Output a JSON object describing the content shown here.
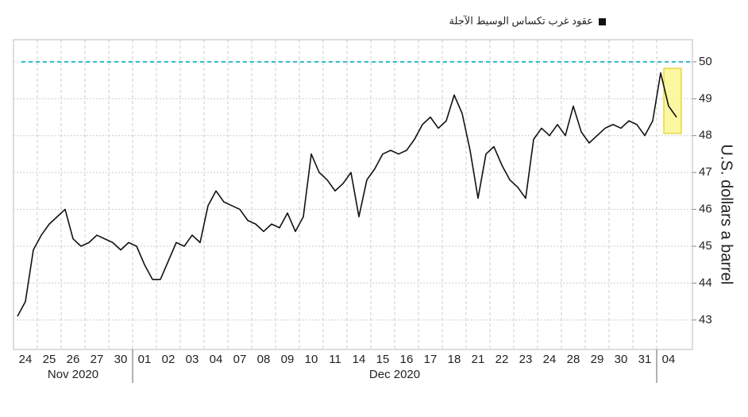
{
  "chart_data": {
    "type": "line",
    "legend": "عقود غرب تكساس الوسيط الآجلة",
    "y_axis_label": "U.S. dollars a barrel",
    "categories": [
      null,
      "24",
      null,
      null,
      "25",
      null,
      null,
      "26",
      null,
      null,
      "27",
      null,
      null,
      "30",
      null,
      null,
      "01",
      null,
      null,
      "02",
      null,
      null,
      "03",
      null,
      null,
      "04",
      null,
      null,
      "07",
      null,
      null,
      "08",
      null,
      null,
      "09",
      null,
      null,
      "10",
      null,
      null,
      "11",
      null,
      null,
      "14",
      null,
      null,
      "15",
      null,
      null,
      "16",
      null,
      null,
      "17",
      null,
      null,
      "18",
      null,
      null,
      "21",
      null,
      null,
      "22",
      null,
      null,
      "23",
      null,
      null,
      "24",
      null,
      null,
      "28",
      null,
      null,
      "29",
      null,
      null,
      "30",
      null,
      null,
      "31",
      null,
      null,
      "04",
      null
    ],
    "x_groups": [
      "Nov 2020",
      "Dec 2020"
    ],
    "series": [
      {
        "name": "عقود غرب تكساس الوسيط الآجلة",
        "color": "#111111",
        "values": [
          43.1,
          43.5,
          44.9,
          45.3,
          45.6,
          45.8,
          46.0,
          45.2,
          45.0,
          45.1,
          45.3,
          45.2,
          45.1,
          44.9,
          45.1,
          45.0,
          44.5,
          44.1,
          44.1,
          44.6,
          45.1,
          45.0,
          45.3,
          45.1,
          46.1,
          46.5,
          46.2,
          46.1,
          46.0,
          45.7,
          45.6,
          45.4,
          45.6,
          45.5,
          45.9,
          45.4,
          45.8,
          47.5,
          47.0,
          46.8,
          46.5,
          46.7,
          47.0,
          45.8,
          46.8,
          47.1,
          47.5,
          47.6,
          47.5,
          47.6,
          47.9,
          48.3,
          48.5,
          48.2,
          48.4,
          49.1,
          48.6,
          47.6,
          46.3,
          47.5,
          47.7,
          47.2,
          46.8,
          46.6,
          46.3,
          47.9,
          48.2,
          48.0,
          48.3,
          48.0,
          48.8,
          48.1,
          47.8,
          48.0,
          48.2,
          48.3,
          48.2,
          48.4,
          48.3,
          48.0,
          48.4,
          49.7,
          48.8,
          48.5
        ]
      }
    ],
    "reference_line": {
      "value": 50,
      "color": "#2bbccc"
    },
    "ylim": [
      42.2,
      50.6
    ],
    "yticks": [
      43,
      44,
      45,
      46,
      47,
      48,
      49,
      50
    ],
    "grid": true
  }
}
